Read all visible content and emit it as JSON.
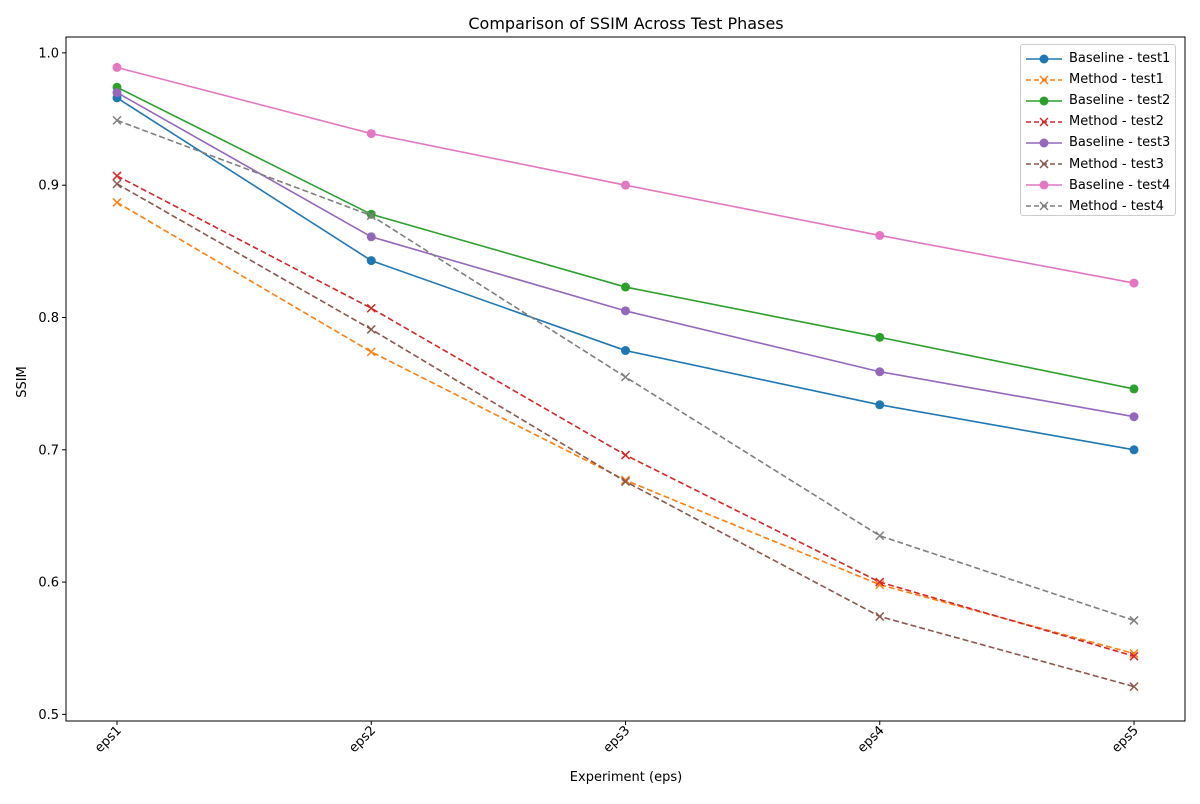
{
  "chart_data": {
    "type": "line",
    "title": "Comparison of SSIM Across Test Phases",
    "xlabel": "Experiment (eps)",
    "ylabel": "SSIM",
    "categories": [
      "eps1",
      "eps2",
      "eps3",
      "eps4",
      "eps5"
    ],
    "ylim": [
      0.495,
      1.012
    ],
    "yticks": [
      0.5,
      0.6,
      0.7,
      0.8,
      0.9,
      1.0
    ],
    "ytick_labels": [
      "0.5",
      "0.6",
      "0.7",
      "0.8",
      "0.9",
      "1.0"
    ],
    "grid": false,
    "legend_position": "top-right",
    "series": [
      {
        "name": "Baseline - test1",
        "color": "#1f77b4",
        "style": "solid",
        "marker": "circle",
        "values": [
          0.966,
          0.843,
          0.775,
          0.734,
          0.7
        ]
      },
      {
        "name": "Method - test1",
        "color": "#ff7f0e",
        "style": "dashed",
        "marker": "x",
        "values": [
          0.887,
          0.774,
          0.677,
          0.598,
          0.546
        ]
      },
      {
        "name": "Baseline - test2",
        "color": "#2ca02c",
        "style": "solid",
        "marker": "circle",
        "values": [
          0.974,
          0.878,
          0.823,
          0.785,
          0.746
        ]
      },
      {
        "name": "Method - test2",
        "color": "#d62728",
        "style": "dashed",
        "marker": "x",
        "values": [
          0.907,
          0.807,
          0.696,
          0.6,
          0.544
        ]
      },
      {
        "name": "Baseline - test3",
        "color": "#9467bd",
        "style": "solid",
        "marker": "circle",
        "values": [
          0.97,
          0.861,
          0.805,
          0.759,
          0.725
        ]
      },
      {
        "name": "Method - test3",
        "color": "#8c564b",
        "style": "dashed",
        "marker": "x",
        "values": [
          0.901,
          0.791,
          0.676,
          0.574,
          0.521
        ]
      },
      {
        "name": "Baseline - test4",
        "color": "#e377c2",
        "style": "solid",
        "marker": "circle",
        "values": [
          0.989,
          0.939,
          0.9,
          0.862,
          0.826
        ]
      },
      {
        "name": "Method - test4",
        "color": "#7f7f7f",
        "style": "dashed",
        "marker": "x",
        "values": [
          0.949,
          0.877,
          0.755,
          0.635,
          0.571
        ]
      }
    ]
  }
}
